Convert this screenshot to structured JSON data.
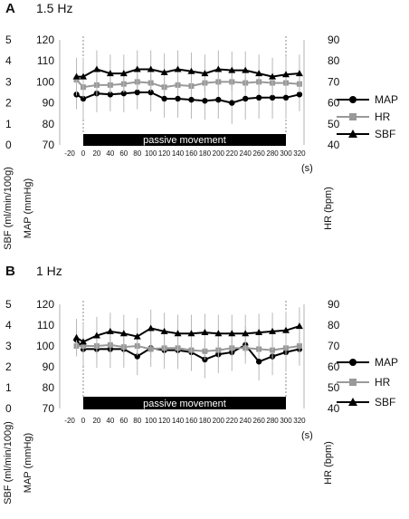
{
  "chart_data": [
    {
      "type": "line",
      "panel": "A",
      "title": "1.5 Hz",
      "x": [
        -10,
        0,
        20,
        40,
        60,
        80,
        100,
        120,
        140,
        160,
        180,
        200,
        220,
        240,
        260,
        280,
        300,
        320
      ],
      "x_ticks": [
        "-20",
        "0",
        "20",
        "40",
        "60",
        "80",
        "100",
        "120",
        "140",
        "160",
        "180",
        "200",
        "220",
        "240",
        "260",
        "280",
        "300",
        "320"
      ],
      "x_unit": "(s)",
      "sbf_ticks": [
        "5",
        "4",
        "3",
        "2",
        "1",
        "0"
      ],
      "map_ticks": [
        "120",
        "110",
        "100",
        "90",
        "80",
        "70"
      ],
      "hr_ticks": [
        "90",
        "80",
        "70",
        "60",
        "50",
        "40"
      ],
      "ylabel_sbf": "SBF (ml/min/100g)",
      "ylabel_map": "MAP (mmHg)",
      "ylabel_hr": "HR (bpm)",
      "map_range": [
        70,
        120
      ],
      "hr_range": [
        40,
        90
      ],
      "bar_label": "passive movement",
      "series": [
        {
          "name": "MAP",
          "marker": "circle",
          "color": "#000000",
          "axis": "map",
          "values": [
            94,
            92,
            94.5,
            94,
            94.5,
            95,
            95,
            92,
            92,
            91.5,
            91,
            91.5,
            90,
            92,
            92.5,
            92.5,
            92.5,
            94
          ],
          "errors": [
            7,
            10,
            9,
            8,
            9,
            8,
            9,
            9,
            9,
            9,
            9,
            9,
            10,
            10,
            10,
            10,
            10,
            8
          ]
        },
        {
          "name": "HR",
          "marker": "square",
          "color": "#999999",
          "axis": "hr",
          "values": [
            71,
            67.5,
            68.5,
            68.5,
            69,
            70,
            69.5,
            67.5,
            68.5,
            68,
            69.5,
            70,
            70,
            69.5,
            70,
            69.5,
            69.5,
            69
          ],
          "errors": [
            5,
            5,
            5,
            4,
            4,
            4,
            4,
            4,
            4,
            4,
            4,
            4,
            4,
            4,
            4,
            4,
            4,
            4
          ]
        },
        {
          "name": "SBF",
          "marker": "triangle",
          "color": "#000000",
          "axis": "map",
          "values": [
            102.5,
            102.5,
            106,
            104,
            104,
            106,
            106,
            104.5,
            106,
            105,
            104,
            106,
            105.5,
            105.5,
            104,
            102.5,
            103.5,
            104
          ],
          "errors": [
            9,
            9,
            9,
            9,
            9,
            9,
            9,
            9,
            9,
            9,
            9,
            9,
            9,
            9,
            9,
            9,
            9,
            9
          ]
        }
      ],
      "legend": [
        "MAP",
        "HR",
        "SBF"
      ]
    },
    {
      "type": "line",
      "panel": "B",
      "title": "1 Hz",
      "x": [
        -10,
        0,
        20,
        40,
        60,
        80,
        100,
        120,
        140,
        160,
        180,
        200,
        220,
        240,
        260,
        280,
        300,
        320
      ],
      "x_ticks": [
        "-20",
        "0",
        "20",
        "40",
        "60",
        "80",
        "100",
        "120",
        "140",
        "160",
        "180",
        "200",
        "220",
        "240",
        "260",
        "280",
        "300",
        "320"
      ],
      "x_unit": "(s)",
      "sbf_ticks": [
        "5",
        "4",
        "3",
        "2",
        "1",
        "0"
      ],
      "map_ticks": [
        "120",
        "110",
        "100",
        "90",
        "80",
        "70"
      ],
      "hr_ticks": [
        "90",
        "80",
        "70",
        "60",
        "50",
        "40"
      ],
      "ylabel_sbf": "SBF (ml/min/100g)",
      "ylabel_map": "MAP (mmHg)",
      "ylabel_hr": "HR (bpm)",
      "map_range": [
        70,
        120
      ],
      "hr_range": [
        40,
        90
      ],
      "bar_label": "passive movement",
      "series": [
        {
          "name": "MAP",
          "marker": "circle",
          "color": "#000000",
          "axis": "map",
          "values": [
            103,
            98.5,
            98.5,
            98.5,
            98.5,
            95,
            99,
            98,
            98,
            97,
            93.5,
            96,
            97,
            100.5,
            92.5,
            95,
            97,
            98.5
          ],
          "errors": [
            8,
            8,
            9,
            9,
            9,
            9,
            9,
            9,
            9,
            9,
            9,
            9,
            9,
            9,
            9,
            9,
            9,
            8
          ]
        },
        {
          "name": "HR",
          "marker": "square",
          "color": "#999999",
          "axis": "hr",
          "values": [
            70,
            70,
            70,
            70.5,
            69.5,
            70,
            68.5,
            69,
            69,
            68,
            67.5,
            68,
            69,
            69,
            68.5,
            68,
            69,
            70
          ],
          "errors": [
            4,
            4,
            4,
            4,
            4,
            4,
            4,
            4,
            4,
            4,
            4,
            4,
            4,
            4,
            4,
            4,
            4,
            4
          ]
        },
        {
          "name": "SBF",
          "marker": "triangle",
          "color": "#000000",
          "axis": "map",
          "values": [
            104,
            102,
            105,
            107,
            106,
            104.5,
            108.5,
            107,
            106,
            106,
            106.5,
            106,
            106,
            106,
            106.5,
            107,
            107.5,
            109.5
          ],
          "errors": [
            9,
            9,
            9,
            9,
            9,
            9,
            9,
            9,
            9,
            9,
            9,
            9,
            9,
            9,
            9,
            9,
            9,
            9
          ]
        }
      ],
      "legend": [
        "MAP",
        "HR",
        "SBF"
      ]
    }
  ]
}
